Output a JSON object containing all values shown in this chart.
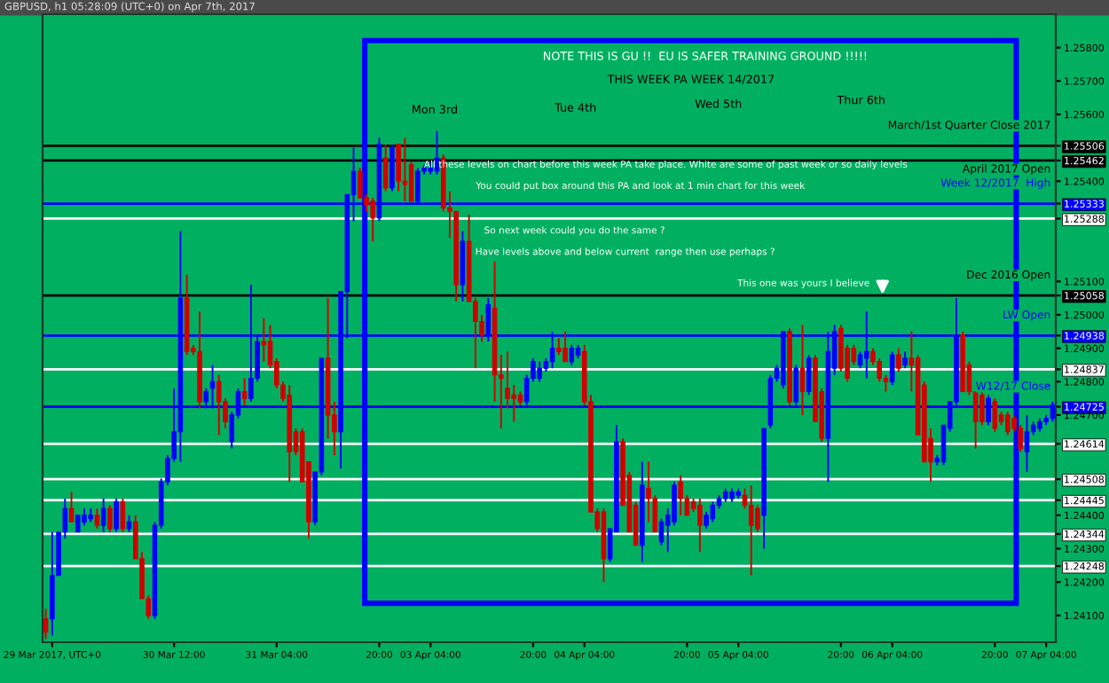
{
  "chart_data": {
    "type": "candlestick",
    "title": "GBPUSD, h1 05:28:09 (UTC+0) on Apr 7th, 2017",
    "annotations": [
      "NOTE THIS IS GU !!  EU IS SAFER TRAINING GROUND !!!!!",
      "THIS WEEK PA WEEK 14/2017",
      "Mon 3rd",
      "Tue 4th",
      "Wed 5th",
      "Thur 6th",
      "All these levels on chart before this week PA take place. White are some of past week or so daily levels",
      "You could put box around this PA and look at 1 min chart for this week",
      "So next week could you do the same ?",
      "Have levels above and below current  range then use perhaps ?",
      "This one was yours I believe"
    ],
    "categories": [
      null,
      "29 Mar 2017, UTC+0",
      null,
      null,
      null,
      null,
      null,
      null,
      null,
      null,
      null,
      null,
      null,
      null,
      null,
      null,
      null,
      null,
      null,
      null,
      "30 Mar 12:00",
      null,
      null,
      null,
      null,
      null,
      null,
      null,
      null,
      null,
      null,
      null,
      null,
      null,
      null,
      null,
      "31 Mar 04:00",
      null,
      null,
      null,
      null,
      null,
      null,
      null,
      null,
      null,
      null,
      null,
      null,
      null,
      null,
      null,
      "20:00",
      null,
      null,
      null,
      null,
      null,
      null,
      null,
      "03 Apr 04:00",
      null,
      null,
      null,
      null,
      null,
      null,
      null,
      null,
      null,
      null,
      null,
      null,
      null,
      null,
      null,
      "20:00",
      null,
      null,
      null,
      null,
      null,
      null,
      null,
      "04 Apr 04:00",
      null,
      null,
      null,
      null,
      null,
      null,
      null,
      null,
      null,
      null,
      null,
      null,
      null,
      null,
      null,
      "20:00",
      null,
      null,
      null,
      null,
      null,
      null,
      null,
      "05 Apr 04:00",
      null,
      null,
      null,
      null,
      null,
      null,
      null,
      null,
      null,
      null,
      null,
      null,
      null,
      null,
      null,
      "20:00",
      null,
      null,
      null,
      null,
      null,
      null,
      null,
      "06 Apr 04:00",
      null,
      null,
      null,
      null,
      null,
      null,
      null,
      null,
      null,
      null,
      null,
      null,
      null,
      null,
      null,
      "20:00",
      null,
      null,
      null,
      null,
      null,
      null,
      null,
      "07 Apr 04:00",
      null
    ],
    "ohlc": [
      [
        1.2409,
        1.2412,
        1.2403,
        1.2405
      ],
      [
        1.2409,
        1.2435,
        1.2404,
        1.2422
      ],
      [
        1.2422,
        1.2435,
        1.2422,
        1.2435
      ],
      [
        1.2435,
        1.2445,
        1.2433,
        1.2442
      ],
      [
        1.2442,
        1.2447,
        1.2438,
        1.2438
      ],
      [
        1.2435,
        1.244,
        1.2435,
        1.244
      ],
      [
        1.2438,
        1.2442,
        1.2437,
        1.244
      ],
      [
        1.2439,
        1.2442,
        1.2438,
        1.244
      ],
      [
        1.244,
        1.2442,
        1.2436,
        1.2437
      ],
      [
        1.2437,
        1.2445,
        1.2435,
        1.2442
      ],
      [
        1.2442,
        1.2443,
        1.2435,
        1.2436
      ],
      [
        1.2436,
        1.2445,
        1.2435,
        1.2444
      ],
      [
        1.2444,
        1.2445,
        1.2435,
        1.2436
      ],
      [
        1.2436,
        1.244,
        1.2435,
        1.2438
      ],
      [
        1.2438,
        1.244,
        1.2427,
        1.2427
      ],
      [
        1.2427,
        1.2429,
        1.2415,
        1.2415
      ],
      [
        1.2415,
        1.2416,
        1.2409,
        1.241
      ],
      [
        1.241,
        1.2438,
        1.2409,
        1.2437
      ],
      [
        1.2437,
        1.2451,
        1.2436,
        1.245
      ],
      [
        1.245,
        1.2458,
        1.2449,
        1.2457
      ],
      [
        1.2457,
        1.2478,
        1.2456,
        1.2465
      ],
      [
        1.2465,
        1.2525,
        1.2456,
        1.2505
      ],
      [
        1.2505,
        1.2512,
        1.2488,
        1.2489
      ],
      [
        1.249,
        1.2491,
        1.2488,
        1.2489
      ],
      [
        1.2489,
        1.2501,
        1.2472,
        1.2474
      ],
      [
        1.2474,
        1.2478,
        1.2472,
        1.2477
      ],
      [
        1.2478,
        1.2485,
        1.2472,
        1.248
      ],
      [
        1.248,
        1.2482,
        1.2464,
        1.2474
      ],
      [
        1.2474,
        1.2475,
        1.2466,
        1.2468
      ],
      [
        1.2462,
        1.2471,
        1.246,
        1.247
      ],
      [
        1.247,
        1.2478,
        1.2469,
        1.2477
      ],
      [
        1.2477,
        1.2481,
        1.2473,
        1.2475
      ],
      [
        1.2475,
        1.2509,
        1.2474,
        1.2481
      ],
      [
        1.2481,
        1.2494,
        1.248,
        1.2492
      ],
      [
        1.2492,
        1.2499,
        1.2486,
        1.2491
      ],
      [
        1.2492,
        1.2497,
        1.2484,
        1.2485
      ],
      [
        1.2486,
        1.2487,
        1.2478,
        1.2479
      ],
      [
        1.2479,
        1.248,
        1.2474,
        1.2475
      ],
      [
        1.2476,
        1.2479,
        1.245,
        1.2459
      ],
      [
        1.2465,
        1.2466,
        1.2458,
        1.2459
      ],
      [
        1.2465,
        1.2466,
        1.245,
        1.245
      ],
      [
        1.2456,
        1.2456,
        1.2433,
        1.2438
      ],
      [
        1.2438,
        1.2453,
        1.2437,
        1.2453
      ],
      [
        1.2453,
        1.2487,
        1.2452,
        1.2487
      ],
      [
        1.2487,
        1.2505,
        1.2463,
        1.247
      ],
      [
        1.247,
        1.2474,
        1.2458,
        1.2465
      ],
      [
        1.2465,
        1.2507,
        1.2454,
        1.2507
      ],
      [
        1.2507,
        1.2536,
        1.2493,
        1.2536
      ],
      [
        1.2536,
        1.255,
        1.2528,
        1.2543
      ],
      [
        1.2543,
        1.2544,
        1.2535,
        1.2535
      ],
      [
        1.2535,
        1.2536,
        1.2531,
        1.2533
      ],
      [
        1.2534,
        1.2535,
        1.2522,
        1.2529
      ],
      [
        1.2529,
        1.2553,
        1.2528,
        1.2551
      ],
      [
        1.2547,
        1.2551,
        1.2537,
        1.2538
      ],
      [
        1.2538,
        1.2551,
        1.2537,
        1.255
      ],
      [
        1.2551,
        1.2551,
        1.2537,
        1.254
      ],
      [
        1.254,
        1.2553,
        1.2534,
        1.2539
      ],
      [
        1.2545,
        1.2546,
        1.2534,
        1.2534
      ],
      [
        1.2534,
        1.2544,
        1.2533,
        1.2543
      ],
      [
        1.2543,
        1.2545,
        1.2542,
        1.2544
      ],
      [
        1.2543,
        1.2546,
        1.2542,
        1.2544
      ],
      [
        1.2543,
        1.2555,
        1.2542,
        1.2547
      ],
      [
        1.2547,
        1.2548,
        1.2531,
        1.2532
      ],
      [
        1.2532,
        1.2537,
        1.2523,
        1.2531
      ],
      [
        1.2531,
        1.2531,
        1.2504,
        1.2509
      ],
      [
        1.2509,
        1.2525,
        1.2504,
        1.2522
      ],
      [
        1.2522,
        1.253,
        1.2504,
        1.2504
      ],
      [
        1.2504,
        1.2505,
        1.2484,
        1.2498
      ],
      [
        1.2498,
        1.25,
        1.2492,
        1.2494
      ],
      [
        1.2494,
        1.2505,
        1.2492,
        1.2503
      ],
      [
        1.2502,
        1.2516,
        1.2474,
        1.2482
      ],
      [
        1.2482,
        1.2488,
        1.2466,
        1.2481
      ],
      [
        1.2478,
        1.2489,
        1.2472,
        1.2475
      ],
      [
        1.2476,
        1.2479,
        1.2468,
        1.2475
      ],
      [
        1.2476,
        1.2477,
        1.2473,
        1.2474
      ],
      [
        1.2474,
        1.2482,
        1.2473,
        1.2481
      ],
      [
        1.2481,
        1.2487,
        1.248,
        1.2486
      ],
      [
        1.2481,
        1.2486,
        1.248,
        1.2484
      ],
      [
        1.2484,
        1.2487,
        1.2483,
        1.2486
      ],
      [
        1.2486,
        1.2495,
        1.2484,
        1.249
      ],
      [
        1.249,
        1.2493,
        1.2488,
        1.2489
      ],
      [
        1.249,
        1.2495,
        1.2486,
        1.2486
      ],
      [
        1.2486,
        1.2491,
        1.2485,
        1.249
      ],
      [
        1.2488,
        1.2491,
        1.2487,
        1.249
      ],
      [
        1.2489,
        1.2491,
        1.2473,
        1.2474
      ],
      [
        1.2474,
        1.2476,
        1.2441,
        1.2441
      ],
      [
        1.2441,
        1.2442,
        1.2435,
        1.2436
      ],
      [
        1.2441,
        1.2442,
        1.242,
        1.2427
      ],
      [
        1.2427,
        1.2436,
        1.2426,
        1.2436
      ],
      [
        1.2435,
        1.2467,
        1.2435,
        1.2462
      ],
      [
        1.2462,
        1.2463,
        1.2443,
        1.2443
      ],
      [
        1.2452,
        1.2453,
        1.2435,
        1.2435
      ],
      [
        1.2443,
        1.2444,
        1.2431,
        1.2431
      ],
      [
        1.2431,
        1.2456,
        1.2426,
        1.2449
      ],
      [
        1.2448,
        1.2456,
        1.2438,
        1.2445
      ],
      [
        1.2445,
        1.2446,
        1.2435,
        1.2435
      ],
      [
        1.2432,
        1.2439,
        1.2431,
        1.2438
      ],
      [
        1.2437,
        1.2442,
        1.2429,
        1.244
      ],
      [
        1.2438,
        1.245,
        1.2437,
        1.2449
      ],
      [
        1.245,
        1.2452,
        1.244,
        1.2445
      ],
      [
        1.2445,
        1.2446,
        1.244,
        1.244
      ],
      [
        1.2444,
        1.2445,
        1.2441,
        1.2442
      ],
      [
        1.2443,
        1.2445,
        1.2429,
        1.2437
      ],
      [
        1.2437,
        1.2441,
        1.2436,
        1.244
      ],
      [
        1.2439,
        1.2444,
        1.2438,
        1.2443
      ],
      [
        1.2443,
        1.2446,
        1.2442,
        1.2445
      ],
      [
        1.2445,
        1.2448,
        1.2444,
        1.2447
      ],
      [
        1.2445,
        1.2448,
        1.2444,
        1.2447
      ],
      [
        1.2446,
        1.2448,
        1.2445,
        1.2447
      ],
      [
        1.2446,
        1.2448,
        1.2442,
        1.2443
      ],
      [
        1.2443,
        1.2449,
        1.2422,
        1.2437
      ],
      [
        1.2442,
        1.2443,
        1.2435,
        1.2436
      ],
      [
        1.244,
        1.2466,
        1.243,
        1.2466
      ],
      [
        1.2467,
        1.2482,
        1.2466,
        1.2481
      ],
      [
        1.2481,
        1.2485,
        1.248,
        1.2484
      ],
      [
        1.2479,
        1.2495,
        1.2478,
        1.2495
      ],
      [
        1.2495,
        1.2496,
        1.2473,
        1.2474
      ],
      [
        1.2474,
        1.2485,
        1.2473,
        1.2484
      ],
      [
        1.2484,
        1.2497,
        1.247,
        1.2477
      ],
      [
        1.2477,
        1.2488,
        1.2476,
        1.2487
      ],
      [
        1.2487,
        1.2488,
        1.2468,
        1.2468
      ],
      [
        1.2477,
        1.2478,
        1.2462,
        1.2463
      ],
      [
        1.2463,
        1.2495,
        1.245,
        1.2489
      ],
      [
        1.2484,
        1.2497,
        1.2482,
        1.2495
      ],
      [
        1.2496,
        1.2497,
        1.2483,
        1.2484
      ],
      [
        1.249,
        1.2491,
        1.248,
        1.2481
      ],
      [
        1.249,
        1.2491,
        1.2485,
        1.2486
      ],
      [
        1.2485,
        1.2489,
        1.2484,
        1.2488
      ],
      [
        1.2487,
        1.2501,
        1.2481,
        1.2489
      ],
      [
        1.2489,
        1.249,
        1.2485,
        1.2486
      ],
      [
        1.2486,
        1.2487,
        1.248,
        1.2481
      ],
      [
        1.2481,
        1.2482,
        1.2477,
        1.248
      ],
      [
        1.248,
        1.2489,
        1.2479,
        1.2488
      ],
      [
        1.2488,
        1.249,
        1.2483,
        1.2484
      ],
      [
        1.2485,
        1.2489,
        1.2484,
        1.2487
      ],
      [
        1.2487,
        1.2495,
        1.2477,
        1.2485
      ],
      [
        1.2487,
        1.2488,
        1.2464,
        1.2464
      ],
      [
        1.2479,
        1.248,
        1.2456,
        1.2456
      ],
      [
        1.2463,
        1.2466,
        1.245,
        1.2456
      ],
      [
        1.2456,
        1.2458,
        1.2455,
        1.2457
      ],
      [
        1.2456,
        1.2467,
        1.2455,
        1.2467
      ],
      [
        1.2466,
        1.2474,
        1.2465,
        1.2474
      ],
      [
        1.2474,
        1.2505,
        1.2473,
        1.2494
      ],
      [
        1.2494,
        1.2495,
        1.2477,
        1.2477
      ],
      [
        1.2485,
        1.2486,
        1.2476,
        1.2477
      ],
      [
        1.2477,
        1.2477,
        1.246,
        1.2468
      ],
      [
        1.2476,
        1.2477,
        1.2467,
        1.2468
      ],
      [
        1.2468,
        1.2476,
        1.2467,
        1.2475
      ],
      [
        1.2474,
        1.2475,
        1.2465,
        1.2466
      ],
      [
        1.247,
        1.2471,
        1.2467,
        1.2468
      ],
      [
        1.247,
        1.2471,
        1.2464,
        1.2465
      ],
      [
        1.2469,
        1.247,
        1.2465,
        1.2466
      ],
      [
        1.2466,
        1.2467,
        1.2459,
        1.246
      ],
      [
        1.2459,
        1.247,
        1.2453,
        1.2465
      ],
      [
        1.2465,
        1.2468,
        1.2464,
        1.2467
      ],
      [
        1.2466,
        1.2469,
        1.2465,
        1.2468
      ],
      [
        1.2468,
        1.247,
        1.2467,
        1.2469
      ],
      [
        1.2469,
        1.2474,
        1.2468,
        1.2473
      ]
    ],
    "colors": [
      "#d00000",
      "#0000ff",
      "#0000ff",
      "#0000ff",
      "#d00000",
      "#0000ff",
      "#0000ff",
      "#0000ff",
      "#d00000",
      "#0000ff",
      "#d00000",
      "#0000ff",
      "#d00000",
      "#0000ff",
      "#d00000",
      "#d00000",
      "#d00000",
      "#0000ff",
      "#0000ff",
      "#0000ff",
      "#0000ff",
      "#0000ff",
      "#d00000",
      "#d00000",
      "#d00000",
      "#0000ff",
      "#0000ff",
      "#d00000",
      "#d00000",
      "#0000ff",
      "#0000ff",
      "#d00000",
      "#0000ff",
      "#0000ff",
      "#d00000",
      "#d00000",
      "#d00000",
      "#d00000",
      "#d00000",
      "#d00000",
      "#d00000",
      "#d00000",
      "#0000ff",
      "#0000ff",
      "#d00000",
      "#d00000",
      "#0000ff",
      "#0000ff",
      "#0000ff",
      "#d00000",
      "#d00000",
      "#d00000",
      "#0000ff",
      "#d00000",
      "#0000ff",
      "#d00000",
      "#d00000",
      "#d00000",
      "#0000ff",
      "#0000ff",
      "#0000ff",
      "#0000ff",
      "#d00000",
      "#d00000",
      "#d00000",
      "#0000ff",
      "#d00000",
      "#d00000",
      "#d00000",
      "#0000ff",
      "#d00000",
      "#d00000",
      "#d00000",
      "#d00000",
      "#d00000",
      "#0000ff",
      "#0000ff",
      "#0000ff",
      "#0000ff",
      "#0000ff",
      "#d00000",
      "#d00000",
      "#0000ff",
      "#0000ff",
      "#d00000",
      "#d00000",
      "#d00000",
      "#d00000",
      "#0000ff",
      "#0000ff",
      "#d00000",
      "#d00000",
      "#d00000",
      "#0000ff",
      "#d00000",
      "#d00000",
      "#0000ff",
      "#0000ff",
      "#0000ff",
      "#d00000",
      "#d00000",
      "#d00000",
      "#d00000",
      "#0000ff",
      "#0000ff",
      "#0000ff",
      "#0000ff",
      "#0000ff",
      "#0000ff",
      "#d00000",
      "#d00000",
      "#d00000",
      "#0000ff",
      "#0000ff",
      "#0000ff",
      "#0000ff",
      "#d00000",
      "#0000ff",
      "#d00000",
      "#0000ff",
      "#d00000",
      "#d00000",
      "#0000ff",
      "#0000ff",
      "#d00000",
      "#d00000",
      "#d00000",
      "#0000ff",
      "#0000ff",
      "#d00000",
      "#d00000",
      "#d00000",
      "#0000ff",
      "#d00000",
      "#0000ff",
      "#d00000",
      "#d00000",
      "#d00000",
      "#d00000",
      "#0000ff",
      "#0000ff",
      "#0000ff",
      "#0000ff",
      "#d00000",
      "#d00000",
      "#d00000",
      "#d00000",
      "#0000ff",
      "#d00000",
      "#d00000",
      "#d00000",
      "#d00000",
      "#d00000",
      "#0000ff",
      "#0000ff",
      "#0000ff",
      "#0000ff",
      "#0000ff"
    ],
    "ylim": [
      1.2402,
      1.259
    ],
    "yticks": [
      {
        "value": 1.258,
        "label": "1.25800"
      },
      {
        "value": 1.257,
        "label": "1.25700"
      },
      {
        "value": 1.256,
        "label": "1.25600"
      },
      1.25506,
      1.25462,
      {
        "value": 1.254,
        "label": "1.25400"
      },
      1.25333,
      1.25288,
      {
        "value": 1.251,
        "label": "1.25100"
      },
      1.25058,
      {
        "value": 1.25,
        "label": "1.25000"
      },
      1.24938,
      {
        "value": 1.249,
        "label": "1.24900"
      },
      1.24837,
      {
        "value": 1.248,
        "label": "1.24800"
      },
      1.24725,
      {
        "value": 1.247,
        "label": "1.24700"
      },
      1.24614,
      1.24508,
      1.24445,
      1.24344,
      1.24248,
      {
        "value": 1.244,
        "label": "1.24400"
      },
      {
        "value": 1.243,
        "label": "1.24300"
      },
      {
        "value": 1.242,
        "label": "1.24200"
      },
      {
        "value": 1.241,
        "label": "1.24100"
      }
    ],
    "ref_lines": [
      {
        "axis": "y",
        "value": 1.25506,
        "label": "March/1st Quarter Close 2017",
        "color": "#000000"
      },
      {
        "axis": "y",
        "value": 1.25462,
        "label": "April 2017 Open",
        "color": "#000000"
      },
      {
        "axis": "y",
        "value": 1.25333,
        "label": "Week 12/2017  High",
        "color": "#0000ff"
      },
      {
        "axis": "y",
        "value": 1.25288,
        "label": null,
        "color": "#ffffff"
      },
      {
        "axis": "y",
        "value": 1.25058,
        "label": "Dec 2016 Open",
        "color": "#000000"
      },
      {
        "axis": "y",
        "value": 1.24938,
        "label": "LW Open",
        "color": "#0000ff"
      },
      {
        "axis": "y",
        "value": 1.24837,
        "label": null,
        "color": "#ffffff"
      },
      {
        "axis": "y",
        "value": 1.24725,
        "label": "W12/17 Close",
        "color": "#0000ff"
      },
      {
        "axis": "y",
        "value": 1.24614,
        "label": null,
        "color": "#ffffff"
      },
      {
        "axis": "y",
        "value": 1.24508,
        "label": null,
        "color": "#ffffff"
      },
      {
        "axis": "y",
        "value": 1.24445,
        "label": null,
        "color": "#ffffff"
      },
      {
        "axis": "y",
        "value": 1.24344,
        "label": null,
        "color": "#ffffff"
      },
      {
        "axis": "y",
        "value": 1.24248,
        "label": null,
        "color": "#ffffff"
      }
    ]
  }
}
